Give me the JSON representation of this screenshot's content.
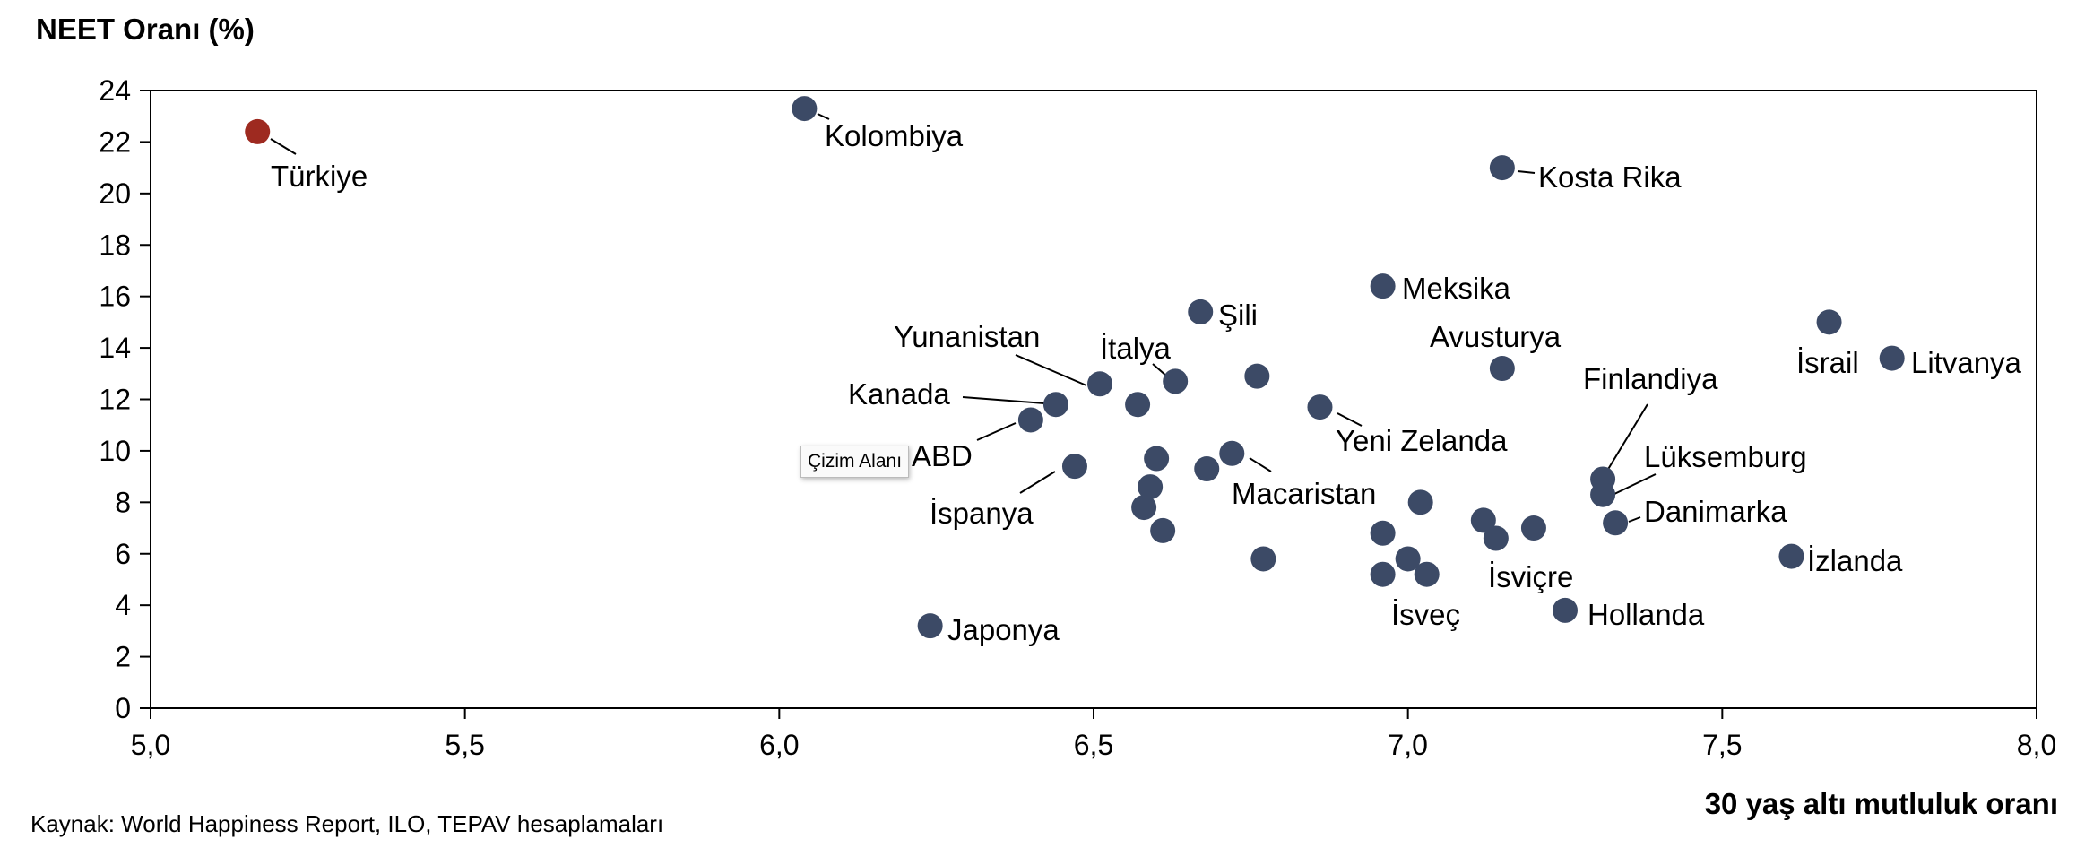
{
  "chart_data": {
    "type": "scatter",
    "ylabel": "NEET Oranı (%)",
    "xlabel": "30 yaş altı mutluluk oranı",
    "source": "Kaynak: World Happiness Report, ILO, TEPAV hesaplamaları",
    "tooltip": "Çizim Alanı",
    "xlim": [
      5.0,
      8.0
    ],
    "ylim": [
      0,
      24
    ],
    "x_ticks": [
      "5,0",
      "5,5",
      "6,0",
      "6,5",
      "7,0",
      "7,5",
      "8,0"
    ],
    "y_ticks": [
      "0",
      "2",
      "4",
      "6",
      "8",
      "10",
      "12",
      "14",
      "16",
      "18",
      "20",
      "22",
      "24"
    ],
    "grid": false,
    "colors": {
      "point": "#3c4a66",
      "highlight": "#9e2a20",
      "axis": "#000000",
      "leader": "#000000"
    },
    "points": [
      {
        "x": 5.17,
        "y": 22.4,
        "label": "Türkiye",
        "highlight": true
      },
      {
        "x": 6.04,
        "y": 23.3,
        "label": "Kolombiya"
      },
      {
        "x": 7.15,
        "y": 21.0,
        "label": "Kosta Rika"
      },
      {
        "x": 6.96,
        "y": 16.4,
        "label": "Meksika"
      },
      {
        "x": 6.67,
        "y": 15.4,
        "label": "Şili"
      },
      {
        "x": 7.67,
        "y": 15.0,
        "label": "İsrail"
      },
      {
        "x": 7.77,
        "y": 13.6,
        "label": "Litvanya"
      },
      {
        "x": 7.15,
        "y": 13.2,
        "label": "Avusturya"
      },
      {
        "x": 6.51,
        "y": 12.6,
        "label": "Yunanistan"
      },
      {
        "x": 6.63,
        "y": 12.7,
        "label": "İtalya"
      },
      {
        "x": 6.44,
        "y": 11.8,
        "label": "Kanada"
      },
      {
        "x": 6.4,
        "y": 11.2,
        "label": "ABD"
      },
      {
        "x": 6.86,
        "y": 11.7,
        "label": "Yeni Zelanda"
      },
      {
        "x": 6.47,
        "y": 9.4,
        "label": "İspanya"
      },
      {
        "x": 6.72,
        "y": 9.9,
        "label": "Macaristan"
      },
      {
        "x": 7.31,
        "y": 8.9,
        "label": "Finlandiya"
      },
      {
        "x": 7.31,
        "y": 8.3,
        "label": "Lüksemburg"
      },
      {
        "x": 7.33,
        "y": 7.2,
        "label": "Danimarka"
      },
      {
        "x": 7.61,
        "y": 5.9,
        "label": "İzlanda"
      },
      {
        "x": 7.03,
        "y": 5.2,
        "label": "İsviçre"
      },
      {
        "x": 6.96,
        "y": 5.2,
        "label": "İsveç"
      },
      {
        "x": 7.25,
        "y": 3.8,
        "label": "Hollanda"
      },
      {
        "x": 6.24,
        "y": 3.2,
        "label": "Japonya"
      },
      {
        "x": 6.57,
        "y": 11.8,
        "label": ""
      },
      {
        "x": 6.76,
        "y": 12.9,
        "label": ""
      },
      {
        "x": 6.6,
        "y": 9.7,
        "label": ""
      },
      {
        "x": 6.68,
        "y": 9.3,
        "label": ""
      },
      {
        "x": 6.59,
        "y": 8.6,
        "label": ""
      },
      {
        "x": 6.58,
        "y": 7.8,
        "label": ""
      },
      {
        "x": 6.61,
        "y": 6.9,
        "label": ""
      },
      {
        "x": 6.77,
        "y": 5.8,
        "label": ""
      },
      {
        "x": 6.96,
        "y": 6.8,
        "label": ""
      },
      {
        "x": 7.0,
        "y": 5.8,
        "label": ""
      },
      {
        "x": 7.02,
        "y": 8.0,
        "label": ""
      },
      {
        "x": 7.12,
        "y": 7.3,
        "label": ""
      },
      {
        "x": 7.14,
        "y": 6.6,
        "label": ""
      },
      {
        "x": 7.2,
        "y": 7.0,
        "label": ""
      }
    ]
  }
}
